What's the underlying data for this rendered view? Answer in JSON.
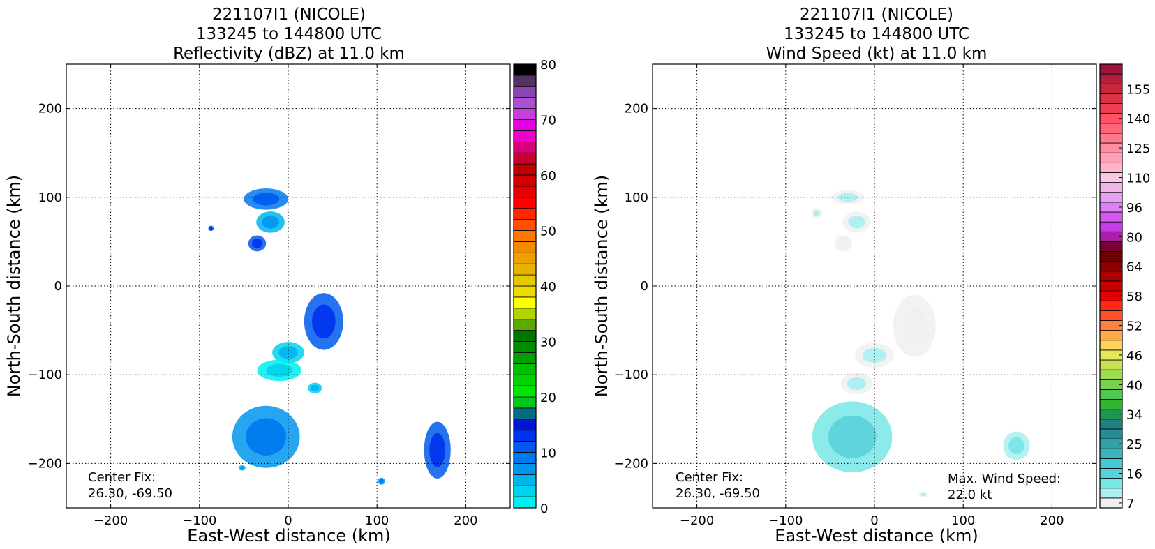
{
  "colors": {
    "reflectivity_cmap": [
      "#00eeee",
      "#00d2ee",
      "#00b4ee",
      "#0096ee",
      "#0078ee",
      "#005aee",
      "#0032ee",
      "#0014d2",
      "#006e82",
      "#00c81e",
      "#00e600",
      "#00d200",
      "#00be00",
      "#00a000",
      "#008c00",
      "#007800",
      "#5aaa00",
      "#b4d200",
      "#ffff00",
      "#eedc00",
      "#e6c800",
      "#e6b400",
      "#eea000",
      "#f08c00",
      "#ff7800",
      "#ff5000",
      "#ff2800",
      "#ff0000",
      "#e60000",
      "#d20000",
      "#be0000",
      "#c80032",
      "#dc0078",
      "#f000c8",
      "#e600e6",
      "#c83cdc",
      "#aa50d2",
      "#8c46b4",
      "#503264",
      "#000000"
    ],
    "windspeed_cmap": [
      "#f0f0f0",
      "#aaf0f0",
      "#78e6e6",
      "#5ad2dc",
      "#46c8d2",
      "#3cb4be",
      "#32a0aa",
      "#288c96",
      "#1e8282",
      "#1e9650",
      "#32b432",
      "#50c850",
      "#78d250",
      "#a0dc50",
      "#c8e150",
      "#e6e65a",
      "#ffd25a",
      "#ffaa46",
      "#ff823c",
      "#ff5028",
      "#ff2814",
      "#e60000",
      "#c80000",
      "#aa0000",
      "#8c0000",
      "#6e0000",
      "#780032",
      "#aa1eaa",
      "#c83ce6",
      "#d25af0",
      "#dc82f0",
      "#e6a0f0",
      "#f0b4e6",
      "#f8c8e6",
      "#ffb4c8",
      "#ffa0b4",
      "#ff8ca0",
      "#ff788c",
      "#ff6478",
      "#ff5064",
      "#f03c50",
      "#dc3246",
      "#c8283c",
      "#b41e3c",
      "#a0143c"
    ],
    "data_low": "#00e0ee",
    "data_mid": "#0096ee",
    "data_high": "#0028e0",
    "wind_low": "#eeeeee",
    "wind_mid": "#a8ecec",
    "wind_high": "#40bcc4"
  },
  "left_panel": {
    "title_line1": "221107I1 (NICOLE)",
    "title_line2": "133245 to 144800 UTC",
    "title_line3": "Reflectivity (dBZ) at 11.0 km",
    "center_fix_label": "Center Fix:",
    "center_fix_value": "26.30, -69.50",
    "colorbar_ticks": [
      "0",
      "10",
      "20",
      "30",
      "40",
      "50",
      "60",
      "70",
      "80"
    ]
  },
  "right_panel": {
    "title_line1": "221107I1 (NICOLE)",
    "title_line2": "133245 to 144800 UTC",
    "title_line3": "Wind Speed (kt) at 11.0 km",
    "center_fix_label": "Center Fix:",
    "center_fix_value": "26.30, -69.50",
    "max_wind_label": "Max. Wind Speed:",
    "max_wind_value": "22.0 kt",
    "colorbar_ticks": [
      "7",
      "16",
      "25",
      "34",
      "40",
      "46",
      "52",
      "58",
      "64",
      "80",
      "96",
      "110",
      "125",
      "140",
      "155"
    ]
  },
  "chart_data": [
    {
      "type": "heatmap",
      "title": "221107I1 (NICOLE) 133245 to 144800 UTC Reflectivity (dBZ) at 11.0 km",
      "xlabel": "East-West distance (km)",
      "ylabel": "North-South distance (km)",
      "xlim": [
        -250,
        250
      ],
      "ylim": [
        -250,
        250
      ],
      "xticks": [
        -200,
        -100,
        0,
        100,
        200
      ],
      "yticks": [
        -200,
        -100,
        0,
        100,
        200
      ],
      "grid": true,
      "colorbar": {
        "label": "dBZ",
        "range": [
          0,
          80
        ],
        "ticks": [
          0,
          10,
          20,
          30,
          40,
          50,
          60,
          70,
          80
        ]
      },
      "regions": [
        {
          "x": -25,
          "y": 98,
          "rx": 25,
          "ry": 12,
          "value": 10
        },
        {
          "x": -20,
          "y": 72,
          "rx": 16,
          "ry": 12,
          "value": 6
        },
        {
          "x": -35,
          "y": 48,
          "rx": 10,
          "ry": 9,
          "value": 12
        },
        {
          "x": -87,
          "y": 65,
          "rx": 3,
          "ry": 3,
          "value": 12
        },
        {
          "x": 40,
          "y": -40,
          "rx": 22,
          "ry": 32,
          "value": 12
        },
        {
          "x": 0,
          "y": -75,
          "rx": 18,
          "ry": 12,
          "value": 4
        },
        {
          "x": -10,
          "y": -95,
          "rx": 25,
          "ry": 12,
          "value": 2
        },
        {
          "x": 30,
          "y": -115,
          "rx": 8,
          "ry": 6,
          "value": 4
        },
        {
          "x": -25,
          "y": -170,
          "rx": 38,
          "ry": 35,
          "value": 9
        },
        {
          "x": -52,
          "y": -205,
          "rx": 4,
          "ry": 3,
          "value": 6
        },
        {
          "x": 105,
          "y": -220,
          "rx": 4,
          "ry": 4,
          "value": 8
        },
        {
          "x": 168,
          "y": -185,
          "rx": 15,
          "ry": 32,
          "value": 12
        }
      ]
    },
    {
      "type": "heatmap",
      "title": "221107I1 (NICOLE) 133245 to 144800 UTC Wind Speed (kt) at 11.0 km",
      "xlabel": "East-West distance (km)",
      "ylabel": "North-South distance (km)",
      "xlim": [
        -250,
        250
      ],
      "ylim": [
        -250,
        250
      ],
      "xticks": [
        -200,
        -100,
        0,
        100,
        200
      ],
      "yticks": [
        -200,
        -100,
        0,
        100,
        200
      ],
      "grid": true,
      "colorbar": {
        "label": "kt",
        "range": [
          7,
          155
        ],
        "ticks": [
          7,
          16,
          25,
          34,
          40,
          46,
          52,
          58,
          64,
          80,
          96,
          110,
          125,
          140,
          155
        ]
      },
      "max_wind_speed_kt": 22.0,
      "regions": [
        {
          "x": -30,
          "y": 100,
          "rx": 18,
          "ry": 8,
          "value": 12
        },
        {
          "x": -20,
          "y": 72,
          "rx": 16,
          "ry": 12,
          "value": 9
        },
        {
          "x": -35,
          "y": 48,
          "rx": 10,
          "ry": 9,
          "value": 8
        },
        {
          "x": -65,
          "y": 82,
          "rx": 6,
          "ry": 6,
          "value": 12
        },
        {
          "x": 45,
          "y": -45,
          "rx": 24,
          "ry": 35,
          "value": 6
        },
        {
          "x": 0,
          "y": -78,
          "rx": 22,
          "ry": 14,
          "value": 12
        },
        {
          "x": -20,
          "y": -110,
          "rx": 18,
          "ry": 12,
          "value": 9
        },
        {
          "x": -25,
          "y": -170,
          "rx": 45,
          "ry": 40,
          "value": 16
        },
        {
          "x": 160,
          "y": -180,
          "rx": 15,
          "ry": 16,
          "value": 14
        },
        {
          "x": 55,
          "y": -235,
          "rx": 5,
          "ry": 3,
          "value": 12
        }
      ]
    }
  ]
}
